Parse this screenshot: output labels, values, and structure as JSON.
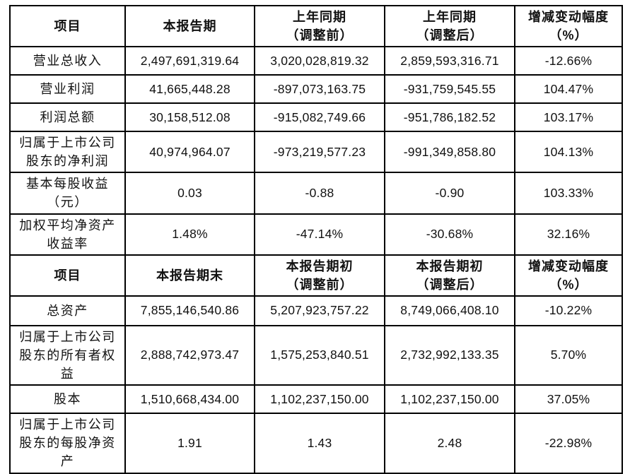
{
  "table": {
    "section1": {
      "headers": [
        "项目",
        "本报告期",
        "上年同期\n（调整前）",
        "上年同期\n（调整后）",
        "增减变动幅度\n（%）"
      ],
      "rows": [
        {
          "label": "营业总收入",
          "current": "2,497,691,319.64",
          "prior_before": "3,020,028,819.32",
          "prior_after": "2,859,593,316.71",
          "change": "-12.66%"
        },
        {
          "label": "营业利润",
          "current": "41,665,448.28",
          "prior_before": "-897,073,163.75",
          "prior_after": "-931,759,545.55",
          "change": "104.47%"
        },
        {
          "label": "利润总额",
          "current": "30,158,512.08",
          "prior_before": "-915,082,749.66",
          "prior_after": "-951,786,182.52",
          "change": "103.17%"
        },
        {
          "label": "归属于上市公司\n股东的净利润",
          "current": "40,974,964.07",
          "prior_before": "-973,219,577.23",
          "prior_after": "-991,349,858.80",
          "change": "104.13%"
        },
        {
          "label": "基本每股收益\n（元）",
          "current": "0.03",
          "prior_before": "-0.88",
          "prior_after": "-0.90",
          "change": "103.33%"
        },
        {
          "label": "加权平均净资产\n收益率",
          "current": "1.48%",
          "prior_before": "-47.14%",
          "prior_after": "-30.68%",
          "change": "32.16%"
        }
      ]
    },
    "section2": {
      "headers": [
        "项目",
        "本报告期期末",
        "本报告期初\n（调整前）",
        "本报告期初\n（调整后）",
        "增减变动幅度\n（%）"
      ],
      "headers_display": [
        "项目",
        "本报告期末",
        "本报告期初\n（调整前）",
        "本报告期初\n（调整后）",
        "增减变动幅度\n（%）"
      ],
      "rows": [
        {
          "label": "总资产",
          "current": "7,855,146,540.86",
          "prior_before": "5,207,923,757.22",
          "prior_after": "8,749,066,408.10",
          "change": "-10.22%"
        },
        {
          "label": "归属于上市公司\n股东的所有者权\n益",
          "current": "2,888,742,973.47",
          "prior_before": "1,575,253,840.51",
          "prior_after": "2,732,992,133.35",
          "change": "5.70%"
        },
        {
          "label": "股本",
          "current": "1,510,668,434.00",
          "prior_before": "1,102,237,150.00",
          "prior_after": "1,102,237,150.00",
          "change": "37.05%"
        },
        {
          "label": "归属于上市公司\n股东的每股净资\n产",
          "current": "1.91",
          "prior_before": "1.43",
          "prior_after": "2.48",
          "change": "-22.98%"
        }
      ]
    }
  }
}
